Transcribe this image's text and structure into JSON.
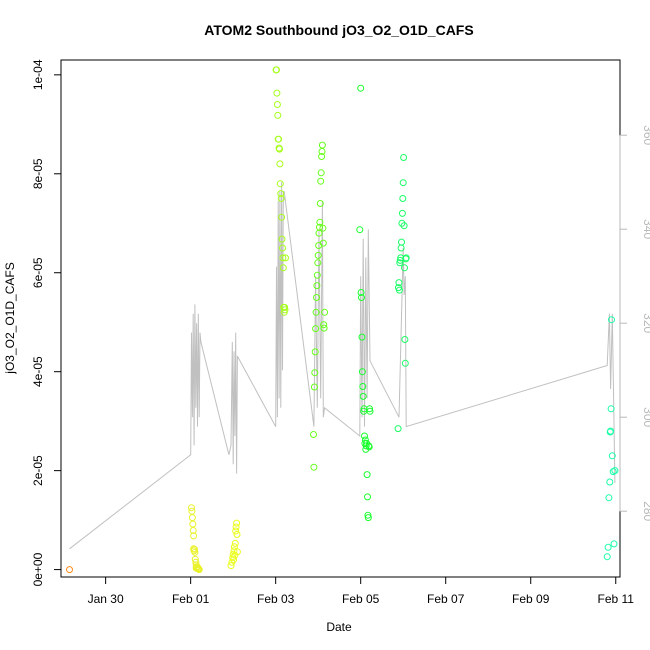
{
  "chart_data": {
    "type": "scatter",
    "title": "ATOM2 Southbound jO3_O2_O1D_CAFS",
    "xlabel": "Date",
    "ylabel": "jO3_O2_O1D_CAFS",
    "x_ticks": [
      "Jan 30",
      "Feb 01",
      "Feb 03",
      "Feb 05",
      "Feb 07",
      "Feb 09",
      "Feb 11"
    ],
    "y_ticks": [
      "0e+00",
      "2e-05",
      "4e-05",
      "6e-05",
      "8e-05",
      "1e-04"
    ],
    "y_right_ticks": [
      "280",
      "300",
      "320",
      "340",
      "360"
    ],
    "xlim_days_after_jan29": [
      -0.05,
      13.1
    ],
    "ylim": [
      -1.5e-06,
      0.000103
    ],
    "y_right_lim": [
      266,
      376
    ],
    "grid": false,
    "legend": "none",
    "point_style": "open circles, colored along a red-yellow-green-cyan gradient by time",
    "colors": {
      "flight_0": "#ff8c1a",
      "flight_1": "#e9f22a",
      "flight_2": "#eaff1a",
      "flight_3": "#a6ff1a",
      "flight_4": "#66ff1a",
      "flight_5": "#1aff2e",
      "flight_6": "#1aff66",
      "flight_7": "#1affa8",
      "secondary_line": "#c0c0c0"
    },
    "series": [
      {
        "flight": 0,
        "x": [
          0.15
        ],
        "y": [
          0.0
        ]
      },
      {
        "flight": 1,
        "x": [
          3.02,
          3.03,
          3.04,
          3.05,
          3.06,
          3.07,
          3.07,
          3.08,
          3.09,
          3.1,
          3.11,
          3.12,
          3.13,
          3.13,
          3.14,
          3.15,
          3.16,
          3.18,
          3.19,
          3.2
        ],
        "y": [
          1.25e-05,
          1.18e-05,
          1.05e-05,
          9.2e-06,
          7.9e-06,
          6.8e-06,
          4.2e-06,
          3.8e-06,
          4.1e-06,
          3.5e-06,
          2.1e-06,
          1.5e-06,
          9e-07,
          3e-07,
          4e-07,
          6e-07,
          2e-07,
          3e-07,
          1e-07,
          0.0
        ]
      },
      {
        "flight": 2,
        "x": [
          3.95,
          3.97,
          3.99,
          4.0,
          4.01,
          4.02,
          4.03,
          4.04,
          4.05,
          4.06,
          4.07,
          4.08,
          4.09,
          4.1
        ],
        "y": [
          8e-07,
          1.5e-06,
          2.4e-06,
          3.1e-06,
          2e-06,
          3.8e-06,
          4.6e-06,
          2.9e-06,
          5.3e-06,
          7.8e-06,
          8.6e-06,
          9.4e-06,
          7.1e-06,
          3.6e-06
        ]
      },
      {
        "flight": 3,
        "x": [
          5.01,
          5.02,
          5.03,
          5.04,
          5.05,
          5.06,
          5.07,
          5.08,
          5.09,
          5.1,
          5.11,
          5.12,
          5.13,
          5.14,
          5.15,
          5.16,
          5.17,
          5.18,
          5.19,
          5.2,
          5.21,
          5.22,
          5.23
        ],
        "y": [
          0.000101,
          0.000101,
          9.63e-05,
          9.4e-05,
          9.18e-05,
          8.7e-05,
          8.7e-05,
          8.52e-05,
          8.5e-05,
          8.2e-05,
          7.8e-05,
          7.6e-05,
          7.5e-05,
          7.12e-05,
          6.68e-05,
          6.5e-05,
          6.3e-05,
          6.1e-05,
          5.3e-05,
          5.2e-05,
          5.3e-05,
          5.25e-05,
          6.3e-05
        ]
      },
      {
        "flight": 4,
        "x": [
          5.89,
          5.9,
          5.91,
          5.92,
          5.93,
          5.94,
          5.95,
          5.96,
          5.97,
          5.98,
          5.99,
          6.0,
          6.01,
          6.02,
          6.03,
          6.04,
          6.05,
          6.06,
          6.07,
          6.08,
          6.09,
          6.1,
          6.11,
          6.12,
          6.13,
          6.14,
          6.15
        ],
        "y": [
          2.73e-05,
          2.07e-05,
          3.69e-05,
          3.98e-05,
          4.4e-05,
          4.87e-05,
          5.2e-05,
          5.5e-05,
          5.74e-05,
          5.95e-05,
          6.2e-05,
          6.35e-05,
          6.55e-05,
          6.8e-05,
          6.92e-05,
          7.02e-05,
          7.4e-05,
          7.85e-05,
          8.02e-05,
          8.35e-05,
          8.45e-05,
          8.58e-05,
          6.9e-05,
          6.6e-05,
          4.95e-05,
          4.88e-05,
          5.2e-05
        ]
      },
      {
        "flight": 5,
        "x": [
          6.98,
          7.0,
          7.01,
          7.02,
          7.03,
          7.04,
          7.05,
          7.06,
          7.07,
          7.08,
          7.09,
          7.1,
          7.11,
          7.12,
          7.13,
          7.14,
          7.15,
          7.16,
          7.17,
          7.18,
          7.19,
          7.2,
          7.21,
          7.22
        ],
        "y": [
          6.87e-05,
          9.73e-05,
          5.6e-05,
          5.5e-05,
          4.7e-05,
          4e-05,
          3.7e-05,
          3.5e-05,
          3.2e-05,
          3.25e-05,
          2.7e-05,
          2.55e-05,
          2.62e-05,
          2.43e-05,
          2.5e-05,
          2.55e-05,
          1.92e-05,
          1.47e-05,
          1.1e-05,
          1.05e-05,
          2.5e-05,
          2.48e-05,
          3.25e-05,
          3.2e-05
        ]
      },
      {
        "flight": 6,
        "x": [
          7.88,
          7.89,
          7.9,
          7.91,
          7.92,
          7.93,
          7.94,
          7.95,
          7.96,
          7.97,
          7.98,
          7.99,
          8.0,
          8.01,
          8.02,
          8.03,
          8.04,
          8.05,
          8.06,
          8.07
        ],
        "y": [
          2.85e-05,
          5.7e-05,
          5.8e-05,
          5.65e-05,
          6.2e-05,
          6.25e-05,
          6.3e-05,
          6.5e-05,
          6.62e-05,
          7e-05,
          7.2e-05,
          7.5e-05,
          7.82e-05,
          8.33e-05,
          6.95e-05,
          6.1e-05,
          4.65e-05,
          4.17e-05,
          6.28e-05,
          6.3e-05
        ]
      },
      {
        "flight": 7,
        "x": [
          12.8,
          12.82,
          12.84,
          12.86,
          12.87,
          12.88,
          12.89,
          12.9,
          12.92,
          12.94,
          12.96,
          12.98
        ],
        "y": [
          2.6e-06,
          4.5e-06,
          1.45e-05,
          1.77e-05,
          2.78e-05,
          2.8e-05,
          3.25e-05,
          5.05e-05,
          2.3e-05,
          1.98e-05,
          5.2e-06,
          2e-05
        ]
      }
    ],
    "secondary_series": {
      "name": "",
      "axis": "right",
      "color": "#c0c0c0",
      "points": [
        [
          0.15,
          272
        ],
        [
          3.0,
          292
        ],
        [
          3.02,
          318
        ],
        [
          3.04,
          300
        ],
        [
          3.06,
          322
        ],
        [
          3.08,
          294
        ],
        [
          3.1,
          324
        ],
        [
          3.12,
          302
        ],
        [
          3.14,
          320
        ],
        [
          3.16,
          298
        ],
        [
          3.18,
          322
        ],
        [
          3.2,
          300
        ],
        [
          3.22,
          318
        ],
        [
          3.24,
          316
        ],
        [
          3.9,
          292
        ],
        [
          3.95,
          294
        ],
        [
          3.98,
          316
        ],
        [
          4.0,
          290
        ],
        [
          4.02,
          314
        ],
        [
          4.04,
          296
        ],
        [
          4.06,
          318
        ],
        [
          4.08,
          288
        ],
        [
          4.1,
          313
        ],
        [
          5.0,
          298
        ],
        [
          5.02,
          332
        ],
        [
          5.04,
          300
        ],
        [
          5.06,
          346
        ],
        [
          5.08,
          304
        ],
        [
          5.1,
          348
        ],
        [
          5.12,
          302
        ],
        [
          5.14,
          350
        ],
        [
          5.16,
          310
        ],
        [
          5.18,
          348
        ],
        [
          5.2,
          348
        ],
        [
          5.9,
          298
        ],
        [
          5.94,
          330
        ],
        [
          5.98,
          302
        ],
        [
          6.02,
          340
        ],
        [
          6.06,
          304
        ],
        [
          6.1,
          346
        ],
        [
          6.12,
          300
        ],
        [
          6.15,
          302
        ],
        [
          6.98,
          296
        ],
        [
          7.0,
          330
        ],
        [
          7.03,
          300
        ],
        [
          7.06,
          338
        ],
        [
          7.09,
          298
        ],
        [
          7.12,
          334
        ],
        [
          7.15,
          304
        ],
        [
          7.18,
          340
        ],
        [
          7.22,
          312
        ],
        [
          7.9,
          300
        ],
        [
          7.95,
          318
        ],
        [
          8.0,
          336
        ],
        [
          8.02,
          326
        ],
        [
          8.05,
          330
        ],
        [
          8.07,
          298
        ],
        [
          12.8,
          311
        ],
        [
          12.85,
          322
        ],
        [
          12.88,
          306
        ],
        [
          12.92,
          322
        ],
        [
          12.98,
          286
        ]
      ]
    }
  }
}
